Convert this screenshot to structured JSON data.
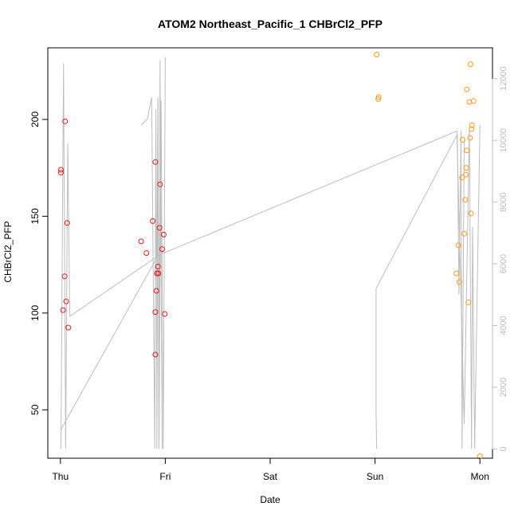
{
  "chart_data": {
    "type": "scatter",
    "title": "ATOM2 Northeast_Pacific_1 CHBrCl2_PFP",
    "xlabel": "Date",
    "ylabel": "CHBrCl2_PFP",
    "x_ticks": [
      {
        "value": 0,
        "label": "Thu"
      },
      {
        "value": 1,
        "label": "Fri"
      },
      {
        "value": 2,
        "label": "Sat"
      },
      {
        "value": 3,
        "label": "Sun"
      },
      {
        "value": 4,
        "label": "Mon"
      }
    ],
    "y_ticks": [
      50,
      100,
      150,
      200
    ],
    "y2_ticks": [
      0,
      2000,
      4000,
      6000,
      8000,
      10000,
      12000
    ],
    "xlim": [
      -0.12,
      4.12
    ],
    "ylim": [
      25,
      237
    ],
    "y2lim": [
      -300,
      13000
    ],
    "colors": {
      "red": "#e41a1c",
      "orange": "#ff9b1e",
      "line": "#bdbdbd"
    },
    "series": [
      {
        "color": "red",
        "points": [
          {
            "x": 0.005,
            "y": 174
          },
          {
            "x": 0.005,
            "y": 172.5
          },
          {
            "x": 0.025,
            "y": 101.5
          },
          {
            "x": 0.04,
            "y": 119
          },
          {
            "x": 0.045,
            "y": 199
          },
          {
            "x": 0.055,
            "y": 106
          },
          {
            "x": 0.065,
            "y": 146.5
          },
          {
            "x": 0.075,
            "y": 92.5
          },
          {
            "x": 0.77,
            "y": 137
          },
          {
            "x": 0.82,
            "y": 131
          },
          {
            "x": 0.88,
            "y": 147.5
          },
          {
            "x": 0.905,
            "y": 178
          },
          {
            "x": 0.905,
            "y": 100.5
          },
          {
            "x": 0.905,
            "y": 78.5
          },
          {
            "x": 0.915,
            "y": 111.5
          },
          {
            "x": 0.92,
            "y": 120.5
          },
          {
            "x": 0.93,
            "y": 124
          },
          {
            "x": 0.935,
            "y": 120.5
          },
          {
            "x": 0.945,
            "y": 144
          },
          {
            "x": 0.95,
            "y": 166.5
          },
          {
            "x": 0.97,
            "y": 133
          },
          {
            "x": 0.985,
            "y": 140.5
          },
          {
            "x": 0.995,
            "y": 99.5
          }
        ]
      },
      {
        "color": "orange",
        "points": [
          {
            "x": 3.015,
            "y": 233.5
          },
          {
            "x": 3.03,
            "y": 210.5
          },
          {
            "x": 3.035,
            "y": 211.5
          },
          {
            "x": 3.775,
            "y": 120.5
          },
          {
            "x": 3.795,
            "y": 135
          },
          {
            "x": 3.805,
            "y": 116
          },
          {
            "x": 3.83,
            "y": 170
          },
          {
            "x": 3.835,
            "y": 189.5
          },
          {
            "x": 3.85,
            "y": 141
          },
          {
            "x": 3.86,
            "y": 158.5
          },
          {
            "x": 3.865,
            "y": 171.5
          },
          {
            "x": 3.87,
            "y": 175
          },
          {
            "x": 3.875,
            "y": 215.5
          },
          {
            "x": 3.875,
            "y": 184
          },
          {
            "x": 3.89,
            "y": 105.5
          },
          {
            "x": 3.9,
            "y": 209
          },
          {
            "x": 3.905,
            "y": 190.5
          },
          {
            "x": 3.91,
            "y": 228.5
          },
          {
            "x": 3.915,
            "y": 151.5
          },
          {
            "x": 3.92,
            "y": 195
          },
          {
            "x": 3.925,
            "y": 197
          },
          {
            "x": 3.94,
            "y": 209.5
          },
          {
            "x": 4.0,
            "y": 26
          }
        ]
      }
    ],
    "line_series": [
      {
        "axis": "right",
        "color": "line",
        "points": [
          {
            "x": 0.005,
            "y": 0
          },
          {
            "x": 0.03,
            "y": 12500
          },
          {
            "x": 0.05,
            "y": 0
          },
          {
            "x": 0.07,
            "y": 9900
          },
          {
            "x": 0.09,
            "y": 4300
          },
          {
            "x": 0.95,
            "y": 6300
          },
          {
            "x": 3.78,
            "y": 10300
          },
          {
            "x": 3.85,
            "y": 800
          },
          {
            "x": 3.9,
            "y": 10400
          },
          {
            "x": 3.92,
            "y": 0
          },
          {
            "x": 3.93,
            "y": 7200
          },
          {
            "x": 3.95,
            "y": 0
          },
          {
            "x": 4.0,
            "y": 10500
          }
        ]
      },
      {
        "axis": "right",
        "color": "line",
        "points": [
          {
            "x": 0.0,
            "y": 600
          },
          {
            "x": 0.92,
            "y": 6200
          },
          {
            "x": 0.93,
            "y": 11300
          },
          {
            "x": 0.94,
            "y": 0
          },
          {
            "x": 0.96,
            "y": 11300
          },
          {
            "x": 0.98,
            "y": 0
          },
          {
            "x": 1.0,
            "y": 12700
          }
        ]
      },
      {
        "axis": "right",
        "color": "line",
        "points": [
          {
            "x": 0.77,
            "y": 10500
          },
          {
            "x": 0.83,
            "y": 10700
          },
          {
            "x": 0.87,
            "y": 11400
          },
          {
            "x": 0.9,
            "y": 0
          },
          {
            "x": 0.91,
            "y": 11000
          },
          {
            "x": 0.92,
            "y": 0
          },
          {
            "x": 0.93,
            "y": 11400
          },
          {
            "x": 0.94,
            "y": 0
          },
          {
            "x": 0.95,
            "y": 12600
          },
          {
            "x": 0.97,
            "y": 0
          }
        ]
      },
      {
        "axis": "right",
        "color": "line",
        "points": [
          {
            "x": 3.015,
            "y": 0
          },
          {
            "x": 3.01,
            "y": 1200
          },
          {
            "x": 3.01,
            "y": 5200
          },
          {
            "x": 3.785,
            "y": 10200
          },
          {
            "x": 3.8,
            "y": 5000
          },
          {
            "x": 3.82,
            "y": 10300
          },
          {
            "x": 3.83,
            "y": 0
          },
          {
            "x": 3.85,
            "y": 10000
          }
        ]
      }
    ]
  }
}
